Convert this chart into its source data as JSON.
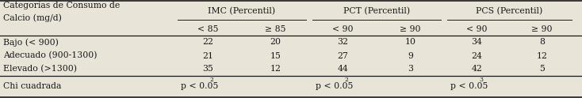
{
  "col_header_row1_left": "Categorías de Consumo de\nCalcio (mg/d)",
  "group_headers": [
    "IMC (Percentil)",
    "PCT (Percentil)",
    "PCS (Percentil)"
  ],
  "sub_headers": [
    "< 85",
    "≥ 85",
    "< 90",
    "≥ 90",
    "< 90",
    "≥ 90"
  ],
  "rows": [
    [
      "Bajo (< 900)",
      "22",
      "20",
      "32",
      "10",
      "34",
      "8"
    ],
    [
      "Adecuado (900-1300)",
      "21",
      "15",
      "27",
      "9",
      "24",
      "12"
    ],
    [
      "Elevado (>1300)",
      "35",
      "12",
      "44",
      "3",
      "42",
      "5"
    ]
  ],
  "footer_label": "Chi cuadrada",
  "footer_values": [
    {
      "text": "p < 0.05",
      "sup": "2"
    },
    {
      "text": "p < 0.05",
      "sup": "2"
    },
    {
      "text": "p < 0.05",
      "sup": "3"
    }
  ],
  "background_color": "#e8e4d8",
  "text_color": "#1a1a1a",
  "font_size": 7.8,
  "sup_font_size": 5.5
}
